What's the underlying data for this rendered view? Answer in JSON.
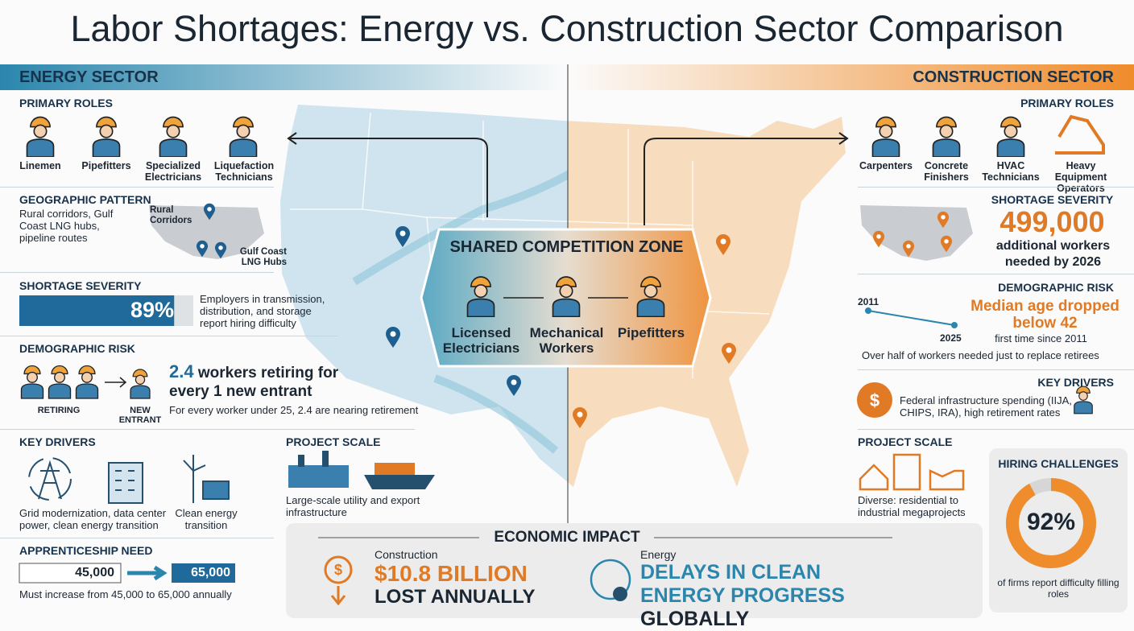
{
  "title": "Labor Shortages: Energy vs. Construction Sector Comparison",
  "energy": {
    "header": "ENERGY SECTOR",
    "primary_roles": {
      "heading": "PRIMARY ROLES",
      "roles": [
        "Linemen",
        "Pipefitters",
        "Specialized Electricians",
        "Liquefaction Technicians"
      ]
    },
    "geographic_pattern": {
      "heading": "GEOGRAPHIC PATTERN",
      "text": "Rural corridors, Gulf Coast LNG hubs, pipeline routes",
      "map_labels": [
        "Rural Corridors",
        "Gulf Coast LNG Hubs"
      ]
    },
    "shortage_severity": {
      "heading": "SHORTAGE SEVERITY",
      "value": 89,
      "label": "89%",
      "text": "Employers in transmission, distribution, and storage report hiring difficulty"
    },
    "demographic_risk": {
      "heading": "DEMOGRAPHIC RISK",
      "retiring_label": "RETIRING",
      "new_label": "NEW ENTRANT",
      "headline_number": "2.4",
      "headline": "workers retiring for every 1 new entrant",
      "text": "For every worker under 25, 2.4 are nearing retirement"
    },
    "key_drivers": {
      "heading": "KEY DRIVERS",
      "items": [
        "Grid modernization, data center power, clean energy transition",
        "Clean energy transition"
      ]
    },
    "project_scale": {
      "heading": "PROJECT SCALE",
      "text": "Large-scale utility and export infrastructure"
    },
    "apprenticeship": {
      "heading": "APPRENTICESHIP NEED",
      "from": "45,000",
      "to": "65,000",
      "text": "Must increase from 45,000 to 65,000 annually"
    }
  },
  "construction": {
    "header": "CONSTRUCTION SECTOR",
    "primary_roles": {
      "heading": "PRIMARY ROLES",
      "roles": [
        "Carpenters",
        "Concrete Finishers",
        "HVAC Technicians",
        "Heavy Equipment Operators"
      ]
    },
    "shortage_severity": {
      "heading": "SHORTAGE SEVERITY",
      "number": "499,000",
      "text": "additional workers needed by 2026"
    },
    "demographic_risk": {
      "heading": "DEMOGRAPHIC RISK",
      "year_start": "2011",
      "year_end": "2025",
      "headline": "Median age dropped below 42",
      "subtext": "first time since 2011",
      "text": "Over half of workers needed just to replace retirees"
    },
    "key_drivers": {
      "heading": "KEY DRIVERS",
      "text": "Federal infrastructure spending (IIJA, CHIPS, IRA), high retirement rates"
    },
    "project_scale": {
      "heading": "PROJECT SCALE",
      "text": "Diverse: residential to industrial megaprojects"
    },
    "hiring_challenges": {
      "heading": "HIRING CHALLENGES",
      "value": 92,
      "label": "92%",
      "text": "of firms report difficulty filling roles"
    }
  },
  "shared_zone": {
    "heading": "SHARED COMPETITION ZONE",
    "roles": [
      "Licensed Electricians",
      "Mechanical Workers",
      "Pipefitters"
    ]
  },
  "economic_impact": {
    "heading": "ECONOMIC IMPACT",
    "construction": {
      "label": "Construction",
      "amount": "$10.8 BILLION",
      "rest": "LOST ANNUALLY"
    },
    "energy": {
      "label": "Energy",
      "highlight": "DELAYS IN CLEAN ENERGY PROGRESS",
      "rest": "GLOBALLY"
    }
  }
}
